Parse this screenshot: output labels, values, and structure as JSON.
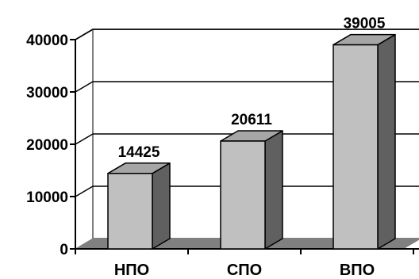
{
  "chart_data": {
    "type": "bar",
    "title": "",
    "xlabel": "",
    "ylabel": "",
    "categories": [
      "НПО",
      "СПО",
      "ВПО"
    ],
    "values": [
      14425,
      20611,
      39005
    ],
    "data_labels": [
      "14425",
      "20611",
      "39005"
    ],
    "ylim": [
      0,
      40000
    ],
    "yticks": [
      0,
      10000,
      20000,
      30000,
      40000
    ],
    "ytick_labels": [
      "0",
      "10000",
      "20000",
      "30000",
      "40000"
    ],
    "grid": true,
    "legend": "none",
    "colors": {
      "bar_front": "#c0c0c0",
      "bar_side": "#606060",
      "bar_top": "#a6a6a6",
      "floor": "#808080",
      "wall": "#ffffff",
      "grid": "#000000",
      "axis": "#000000",
      "wall_edge": "#808080"
    }
  }
}
